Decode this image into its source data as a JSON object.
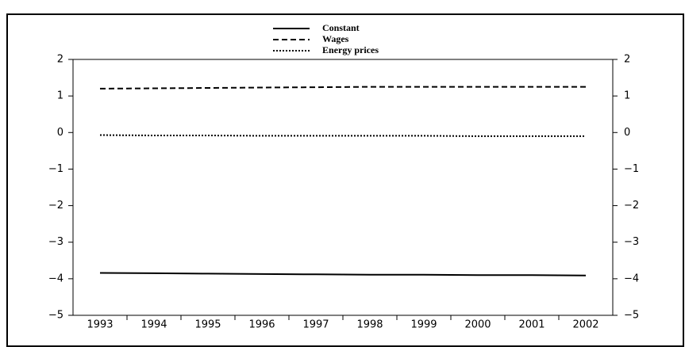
{
  "chart_data": {
    "type": "line",
    "categories": [
      "1993",
      "1994",
      "1995",
      "1996",
      "1997",
      "1998",
      "1999",
      "2000",
      "2001",
      "2002"
    ],
    "series": [
      {
        "name": "Constant",
        "color": "#000000",
        "dash": "solid",
        "values": [
          -3.84,
          -3.85,
          -3.86,
          -3.87,
          -3.88,
          -3.89,
          -3.89,
          -3.9,
          -3.9,
          -3.91
        ]
      },
      {
        "name": "Wages",
        "color": "#000000",
        "dash": "dashed",
        "values": [
          1.2,
          1.21,
          1.22,
          1.23,
          1.24,
          1.25,
          1.25,
          1.25,
          1.25,
          1.25
        ]
      },
      {
        "name": "Energy prices",
        "color": "#000000",
        "dash": "dotted",
        "values": [
          -0.07,
          -0.08,
          -0.08,
          -0.09,
          -0.09,
          -0.09,
          -0.09,
          -0.1,
          -0.1,
          -0.1
        ]
      }
    ],
    "ylim": [
      -5,
      2
    ],
    "yticks": [
      {
        "value": -5,
        "label": "−5"
      },
      {
        "value": -4,
        "label": "−4"
      },
      {
        "value": -3,
        "label": "−3"
      },
      {
        "value": -2,
        "label": "−2"
      },
      {
        "value": -1,
        "label": "−1"
      },
      0,
      1,
      2
    ],
    "y2lim": [
      -5,
      2
    ],
    "y2ticks": [
      {
        "value": -5,
        "label": "−5"
      },
      {
        "value": -4,
        "label": "−4"
      },
      {
        "value": -3,
        "label": "−3"
      },
      {
        "value": -2,
        "label": "−2"
      },
      {
        "value": -1,
        "label": "−1"
      },
      0,
      1,
      2
    ],
    "legend": "top"
  }
}
